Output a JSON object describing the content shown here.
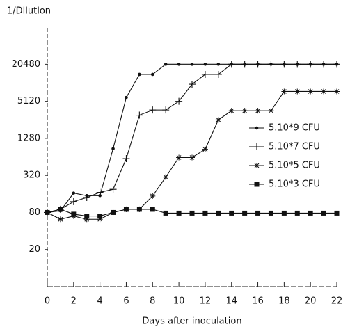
{
  "chart_data": {
    "type": "line",
    "y_label": "1/Dilution",
    "x_label": "Days after inoculation",
    "x": [
      0,
      1,
      2,
      3,
      4,
      5,
      6,
      7,
      8,
      9,
      10,
      11,
      12,
      13,
      14,
      15,
      16,
      17,
      18,
      19,
      20,
      21,
      22
    ],
    "xlim": [
      0,
      22
    ],
    "xticks": [
      0,
      2,
      4,
      6,
      8,
      10,
      12,
      14,
      16,
      18,
      20,
      22
    ],
    "yscale": "log",
    "ylim": [
      5,
      80000
    ],
    "yticks": [
      20,
      80,
      320,
      1280,
      5120,
      20480
    ],
    "series": [
      {
        "name": "5.10*9 CFU",
        "color": "#111111",
        "marker": "dot",
        "values": [
          80,
          85,
          165,
          150,
          150,
          870,
          5900,
          14000,
          14000,
          20480,
          20480,
          20480,
          20480,
          20480,
          20480,
          20480,
          20480,
          20480,
          20480,
          20480,
          20480,
          20480,
          20480
        ]
      },
      {
        "name": "5.10*7 CFU",
        "color": "#111111",
        "marker": "plus",
        "values": [
          80,
          90,
          120,
          140,
          170,
          190,
          600,
          3050,
          3700,
          3700,
          5120,
          9700,
          14000,
          14000,
          20480,
          20480,
          20480,
          20480,
          20480,
          20480,
          20480,
          20480,
          20480
        ]
      },
      {
        "name": "5.10*5 CFU",
        "color": "#111111",
        "marker": "star",
        "values": [
          80,
          62,
          70,
          62,
          62,
          80,
          90,
          90,
          148,
          300,
          625,
          625,
          850,
          2560,
          3600,
          3600,
          3600,
          3600,
          7400,
          7400,
          7400,
          7400,
          7400
        ]
      },
      {
        "name": "5.10*3 CFU",
        "color": "#111111",
        "marker": "square",
        "values": [
          80,
          90,
          75,
          70,
          70,
          80,
          90,
          90,
          90,
          78,
          78,
          78,
          78,
          78,
          78,
          78,
          78,
          78,
          78,
          78,
          78,
          78,
          78
        ]
      }
    ]
  }
}
